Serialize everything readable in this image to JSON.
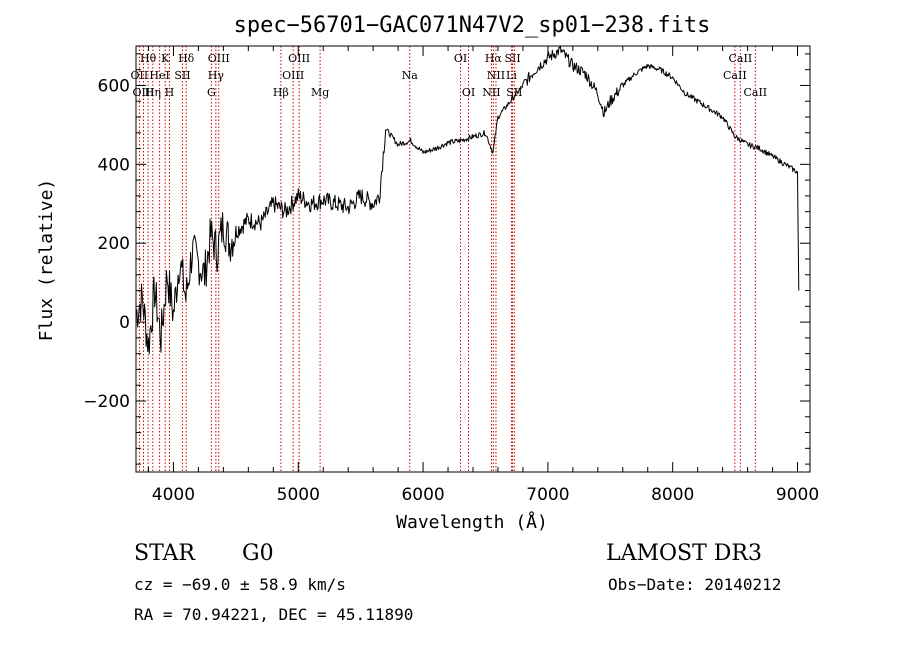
{
  "chart_data": {
    "type": "line",
    "title": "spec−56701−GAC071N47V2_sp01−238.fits",
    "xlabel": "Wavelength (Å)",
    "ylabel": "Flux (relative)",
    "xlim": [
      3700,
      9100
    ],
    "ylim": [
      -380,
      700
    ],
    "x_ticks": [
      4000,
      5000,
      6000,
      7000,
      8000,
      9000
    ],
    "x_tick_labels": [
      "4000",
      "5000",
      "6000",
      "7000",
      "8000",
      "9000"
    ],
    "y_ticks": [
      -200,
      0,
      200,
      400,
      600
    ],
    "y_tick_labels": [
      "−200",
      "0",
      "200",
      "400",
      "600"
    ],
    "series": [
      {
        "name": "flux",
        "color": "#000000",
        "x": [
          3700,
          3750,
          3800,
          3850,
          3900,
          3950,
          4000,
          4050,
          4100,
          4150,
          4200,
          4250,
          4300,
          4350,
          4400,
          4450,
          4500,
          4600,
          4700,
          4800,
          4900,
          5000,
          5100,
          5200,
          5300,
          5400,
          5500,
          5600,
          5650,
          5700,
          5800,
          5900,
          6000,
          6100,
          6200,
          6300,
          6400,
          6500,
          6560,
          6600,
          6700,
          6800,
          6900,
          7000,
          7100,
          7200,
          7300,
          7400,
          7450,
          7500,
          7600,
          7700,
          7800,
          7900,
          8000,
          8100,
          8200,
          8300,
          8400,
          8500,
          8600,
          8700,
          8800,
          8900,
          8950,
          9000,
          9010
        ],
        "y": [
          20,
          60,
          -60,
          80,
          -40,
          120,
          20,
          160,
          60,
          180,
          150,
          120,
          220,
          180,
          250,
          200,
          230,
          260,
          250,
          300,
          280,
          320,
          300,
          310,
          300,
          290,
          320,
          300,
          320,
          490,
          450,
          460,
          430,
          440,
          455,
          460,
          470,
          480,
          430,
          520,
          560,
          600,
          640,
          670,
          690,
          650,
          630,
          580,
          530,
          560,
          600,
          630,
          650,
          640,
          620,
          580,
          560,
          540,
          520,
          470,
          450,
          440,
          420,
          400,
          390,
          380,
          80
        ]
      }
    ],
    "line_markers": [
      {
        "label": "Hθ",
        "x": 3797,
        "row": 0
      },
      {
        "label": "K",
        "x": 3934,
        "row": 0
      },
      {
        "label": "Hδ",
        "x": 4102,
        "row": 0
      },
      {
        "label": "OIII",
        "x": 4363,
        "row": 0
      },
      {
        "label": "OIII",
        "x": 5007,
        "row": 0
      },
      {
        "label": "OI",
        "x": 6300,
        "row": 0
      },
      {
        "label": "Hα",
        "x": 6563,
        "row": 0
      },
      {
        "label": "SII",
        "x": 6717,
        "row": 0
      },
      {
        "label": "CaII",
        "x": 8542,
        "row": 0
      },
      {
        "label": "OII",
        "x": 3727,
        "row": 1
      },
      {
        "label": "HeI",
        "x": 3889,
        "row": 1
      },
      {
        "label": "SII",
        "x": 4072,
        "row": 1
      },
      {
        "label": "Hγ",
        "x": 4340,
        "row": 1
      },
      {
        "label": "OIII",
        "x": 4959,
        "row": 1
      },
      {
        "label": "Na",
        "x": 5893,
        "row": 1
      },
      {
        "label": "NII",
        "x": 6584,
        "row": 1
      },
      {
        "label": "Li",
        "x": 6708,
        "row": 1
      },
      {
        "label": "CaII",
        "x": 8498,
        "row": 1
      },
      {
        "label": "OIII",
        "x": 3760,
        "row": 2
      },
      {
        "label": "Hη",
        "x": 3835,
        "row": 2
      },
      {
        "label": "H",
        "x": 3968,
        "row": 2
      },
      {
        "label": "G",
        "x": 4304,
        "row": 2
      },
      {
        "label": "Hβ",
        "x": 4861,
        "row": 2
      },
      {
        "label": "Mg",
        "x": 5175,
        "row": 2
      },
      {
        "label": "OI",
        "x": 6364,
        "row": 2
      },
      {
        "label": "NII",
        "x": 6548,
        "row": 2
      },
      {
        "label": "SII",
        "x": 6731,
        "row": 2
      },
      {
        "label": "CaII",
        "x": 8662,
        "row": 2
      }
    ],
    "annotations": {
      "class_label": "STAR",
      "subclass_label": "G0",
      "survey_label": "LAMOST DR3",
      "redshift_text": "cz = −69.0 ± 58.9 km/s",
      "obs_date_text": "Obs−Date: 20140212",
      "coords_text": "RA =  70.94221, DEC =  45.11890"
    }
  }
}
